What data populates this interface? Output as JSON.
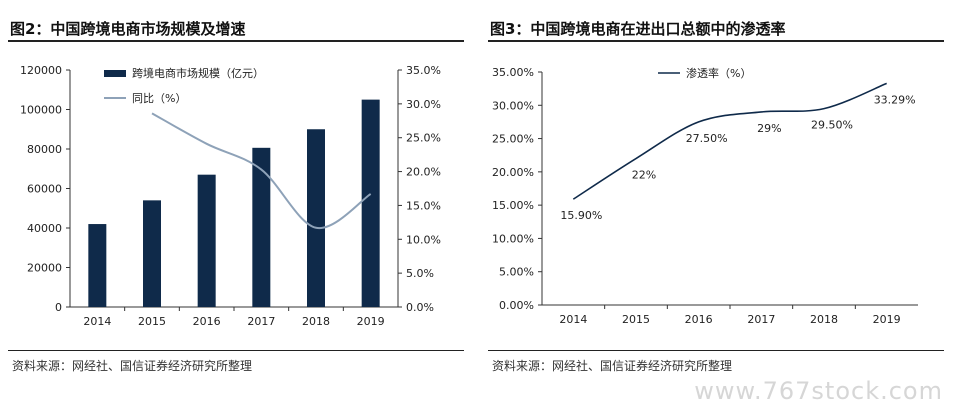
{
  "watermark": "www.767stock.com",
  "colors": {
    "bar": "#0f2a4a",
    "line_left": "#8ea2b8",
    "line_right": "#0f2a4a",
    "axis": "#333333"
  },
  "left": {
    "title": "图2：中国跨境电商市场规模及增速",
    "source": "资料来源：网经社、国信证券经济研究所整理"
  },
  "right": {
    "title": "图3：中国跨境电商在进出口总额中的渗透率",
    "source": "资料来源：网经社、国信证券经济研究所整理"
  },
  "chart_data": [
    {
      "type": "bar",
      "categories": [
        "2014",
        "2015",
        "2016",
        "2017",
        "2018",
        "2019"
      ],
      "series": [
        {
          "name": "跨境电商市场规模（亿元）",
          "type": "bar",
          "axis": "left",
          "values": [
            42000,
            54000,
            67000,
            80600,
            90000,
            105000
          ]
        },
        {
          "name": "同比（%）",
          "type": "line",
          "axis": "right",
          "values": [
            null,
            28.6,
            24.1,
            20.3,
            11.7,
            16.7
          ]
        }
      ],
      "ylim": [
        0,
        120000
      ],
      "yticks": [
        "0",
        "20000",
        "40000",
        "60000",
        "80000",
        "100000",
        "120000"
      ],
      "y2lim": [
        0,
        35
      ],
      "y2ticks": [
        "0.0%",
        "5.0%",
        "10.0%",
        "15.0%",
        "20.0%",
        "25.0%",
        "30.0%",
        "35.0%"
      ],
      "legend_position": "top-left",
      "grid": false
    },
    {
      "type": "line",
      "categories": [
        "2014",
        "2015",
        "2016",
        "2017",
        "2018",
        "2019"
      ],
      "series": [
        {
          "name": "渗透率（%）",
          "values": [
            15.9,
            22.0,
            27.5,
            29.0,
            29.5,
            33.29
          ]
        }
      ],
      "data_labels": [
        "15.90%",
        "22%",
        "27.50%",
        "29%",
        "29.50%",
        "33.29%"
      ],
      "ylim": [
        0,
        35
      ],
      "yticks": [
        "0.00%",
        "5.00%",
        "10.00%",
        "15.00%",
        "20.00%",
        "25.00%",
        "30.00%",
        "35.00%"
      ],
      "legend_position": "top-left",
      "grid": false
    }
  ]
}
